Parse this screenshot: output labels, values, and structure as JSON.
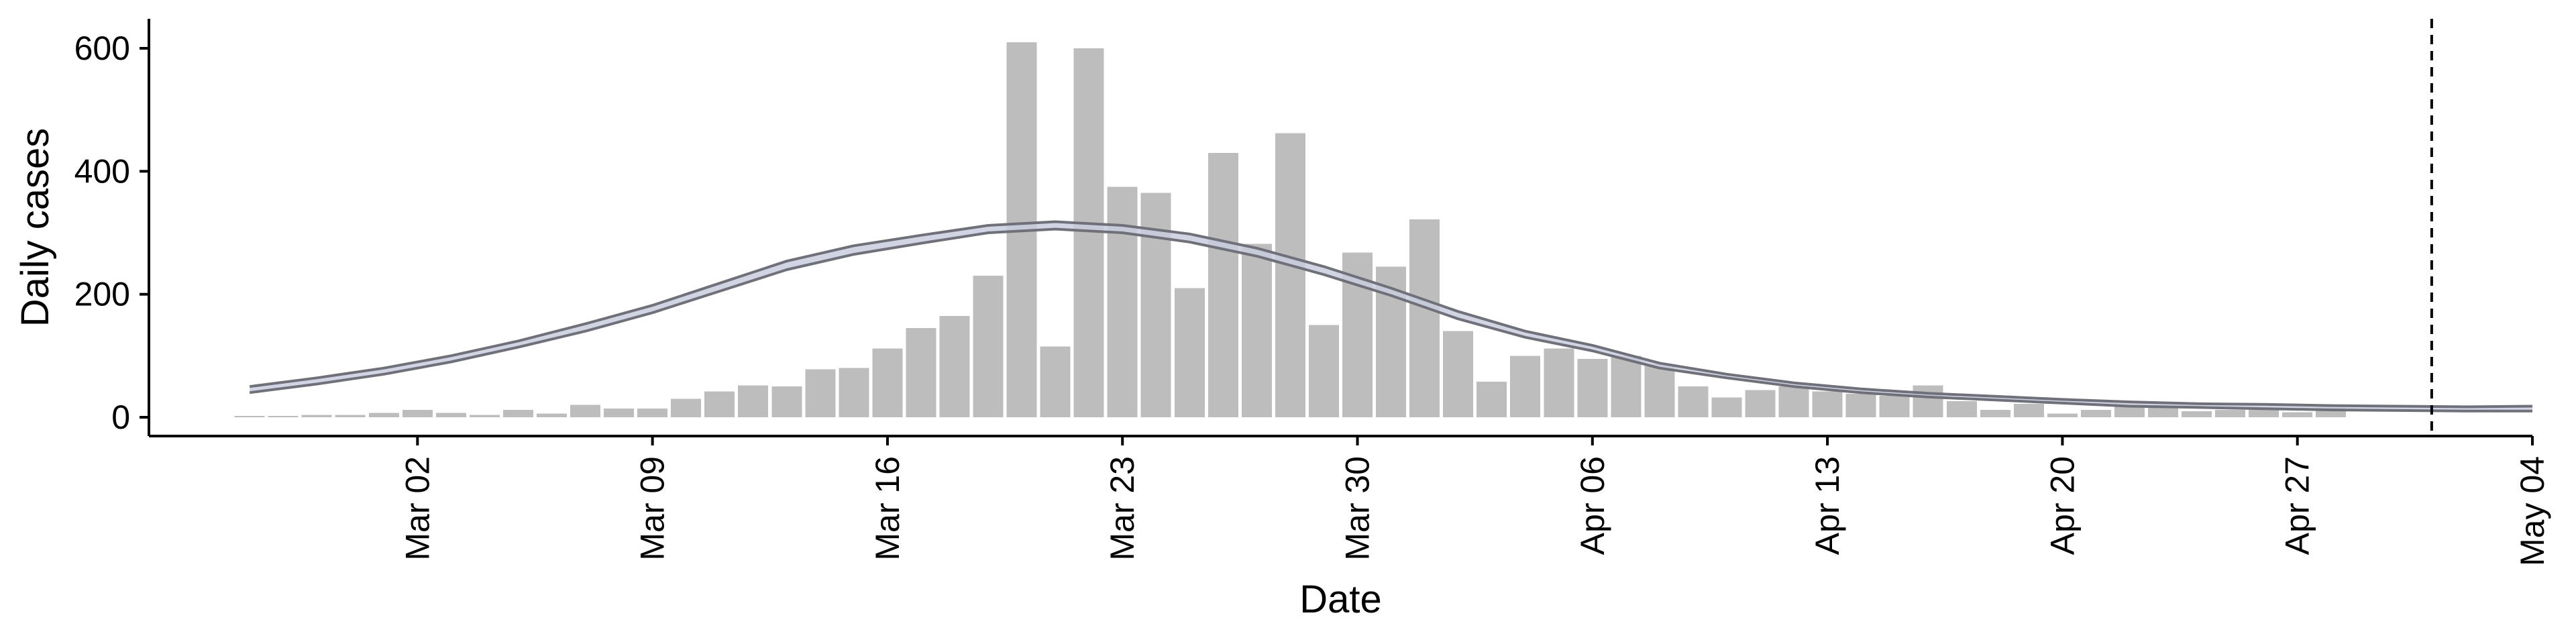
{
  "chart_data": {
    "type": "bar",
    "xlabel": "Date",
    "ylabel": "Daily cases",
    "ylim": [
      0,
      640
    ],
    "yticks": [
      0,
      200,
      400,
      600
    ],
    "x_range": [
      "2020-02-23",
      "2020-05-04"
    ],
    "xticks": [
      {
        "date": "2020-03-02",
        "label": "Mar 02"
      },
      {
        "date": "2020-03-09",
        "label": "Mar 09"
      },
      {
        "date": "2020-03-16",
        "label": "Mar 16"
      },
      {
        "date": "2020-03-23",
        "label": "Mar 23"
      },
      {
        "date": "2020-03-30",
        "label": "Mar 30"
      },
      {
        "date": "2020-04-06",
        "label": "Apr 06"
      },
      {
        "date": "2020-04-13",
        "label": "Apr 13"
      },
      {
        "date": "2020-04-20",
        "label": "Apr 20"
      },
      {
        "date": "2020-04-27",
        "label": "Apr 27"
      },
      {
        "date": "2020-05-04",
        "label": "May 04"
      }
    ],
    "bar_start_date": "2020-02-26",
    "bar_color": "#bdbdbd",
    "bars": [
      2,
      2,
      4,
      4,
      7,
      12,
      7,
      4,
      12,
      6,
      20,
      14,
      14,
      30,
      42,
      52,
      50,
      78,
      80,
      112,
      145,
      165,
      230,
      610,
      115,
      600,
      375,
      365,
      210,
      430,
      282,
      462,
      150,
      268,
      245,
      322,
      140,
      58,
      100,
      112,
      95,
      100,
      86,
      50,
      32,
      44,
      50,
      42,
      38,
      35,
      52,
      26,
      12,
      22,
      6,
      12,
      20,
      16,
      10,
      12,
      12,
      8,
      16
    ],
    "ribbon_color": "#c9cede",
    "ribbon_edge_color": "#70707a",
    "line_start_date": "2020-02-26",
    "line_step_days": 2,
    "line_lower": [
      40,
      54,
      70,
      90,
      114,
      140,
      170,
      205,
      240,
      265,
      283,
      300,
      306,
      300,
      285,
      262,
      232,
      198,
      160,
      130,
      108,
      80,
      64,
      50,
      40,
      33,
      28,
      23,
      18,
      16,
      14,
      12,
      11,
      10,
      10
    ],
    "line_upper": [
      50,
      64,
      80,
      100,
      124,
      152,
      182,
      218,
      254,
      279,
      296,
      312,
      318,
      312,
      298,
      275,
      245,
      210,
      172,
      140,
      117,
      88,
      70,
      56,
      46,
      39,
      34,
      29,
      25,
      22,
      21,
      19,
      18,
      17,
      18
    ],
    "vline_date": "2020-05-01",
    "vline_style": "dashed"
  }
}
